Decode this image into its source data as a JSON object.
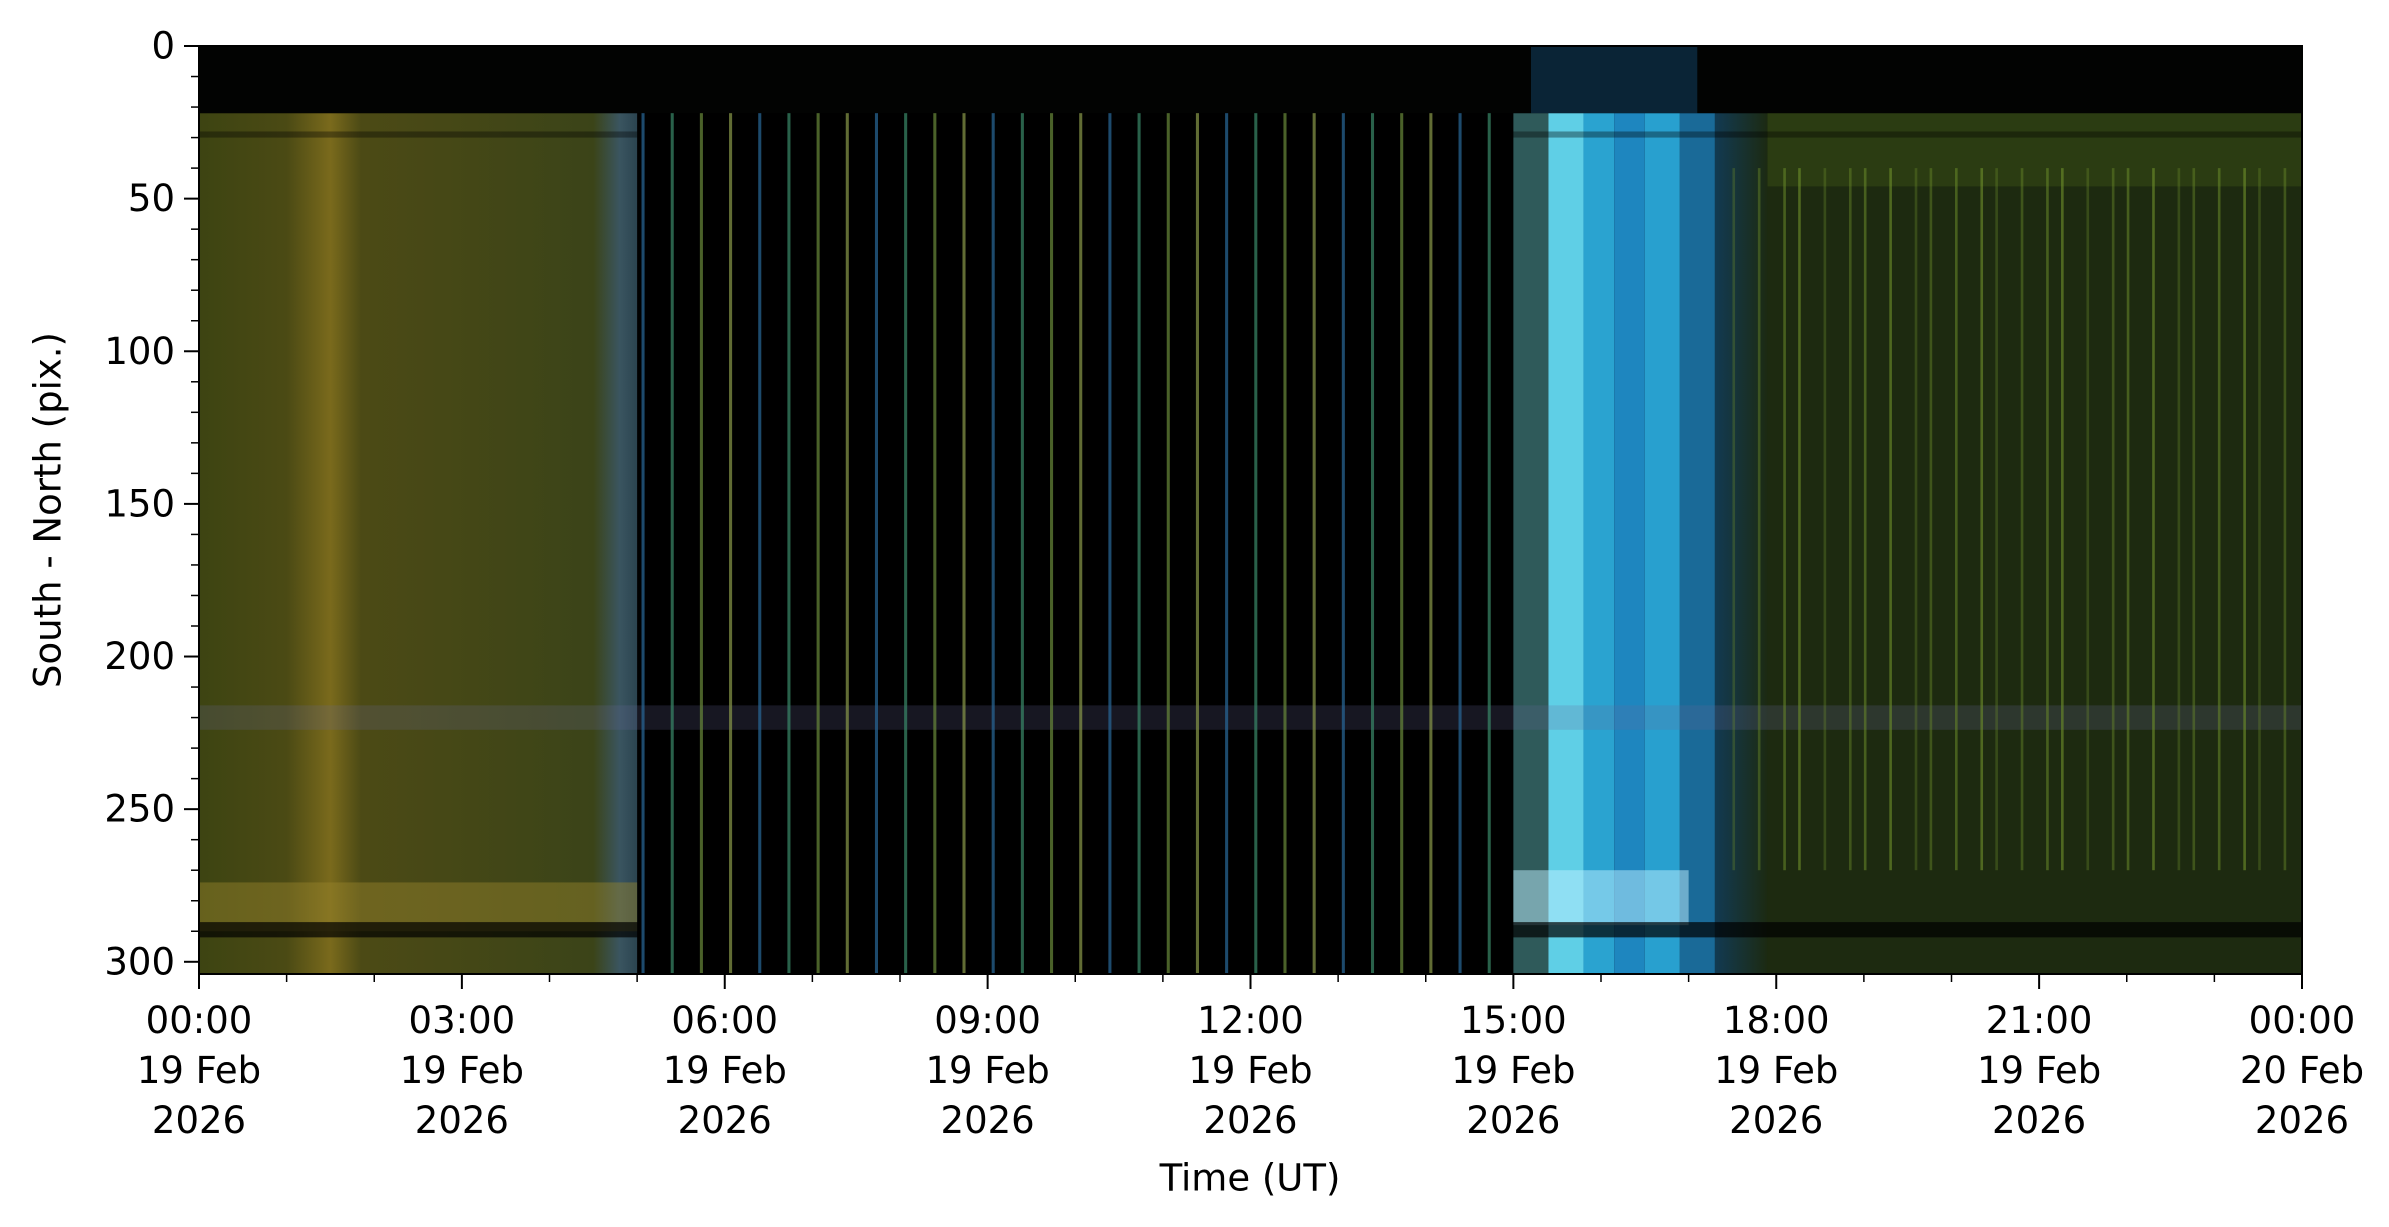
{
  "chart_data": {
    "type": "image",
    "xlabel": "Time (UT)",
    "ylabel": "South - North (pix.)",
    "xlim": [
      0,
      24
    ],
    "xticks": [
      {
        "value": 0,
        "label": "00:00\n19 Feb\n2026"
      },
      {
        "value": 3,
        "label": "03:00\n19 Feb\n2026"
      },
      {
        "value": 6,
        "label": "06:00\n19 Feb\n2026"
      },
      {
        "value": 9,
        "label": "09:00\n19 Feb\n2026"
      },
      {
        "value": 12,
        "label": "12:00\n19 Feb\n2026"
      },
      {
        "value": 15,
        "label": "15:00\n19 Feb\n2026"
      },
      {
        "value": 18,
        "label": "18:00\n19 Feb\n2026"
      },
      {
        "value": 21,
        "label": "21:00\n19 Feb\n2026"
      },
      {
        "value": 24,
        "label": "00:00\n20 Feb\n2026"
      }
    ],
    "ylim": [
      304,
      0
    ],
    "yticks": [
      0,
      50,
      100,
      150,
      200,
      250,
      300
    ]
  }
}
